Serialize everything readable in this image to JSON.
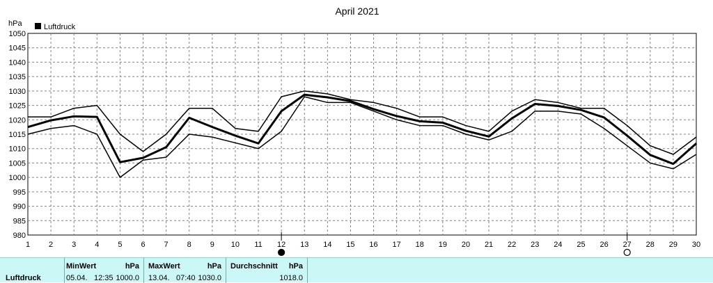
{
  "chart_data": {
    "type": "line",
    "title": "April 2021",
    "ylabel": "hPa",
    "x": [
      1,
      2,
      3,
      4,
      5,
      6,
      7,
      8,
      9,
      10,
      11,
      12,
      13,
      14,
      15,
      16,
      17,
      18,
      19,
      20,
      21,
      22,
      23,
      24,
      25,
      26,
      27,
      28,
      29,
      30
    ],
    "x_ticks": [
      "1",
      "2",
      "3",
      "4",
      "5",
      "6",
      "7",
      "8",
      "9",
      "10",
      "11",
      "12",
      "13",
      "14",
      "15",
      "16",
      "17",
      "18",
      "19",
      "20",
      "21",
      "22",
      "23",
      "24",
      "25",
      "26",
      "27",
      "28",
      "29",
      "30"
    ],
    "ylim": [
      980,
      1050
    ],
    "y_ticks": [
      "980",
      "985",
      "990",
      "995",
      "1000",
      "1005",
      "1010",
      "1015",
      "1020",
      "1025",
      "1030",
      "1035",
      "1040",
      "1045",
      "1050"
    ],
    "grid": true,
    "legend": {
      "position": "top-left",
      "label": "Luftdruck"
    },
    "series": [
      {
        "name": "Luftdruck",
        "role": "mean",
        "values": [
          1017.5,
          1019.8,
          1021.2,
          1021,
          1005.3,
          1006.8,
          1010.5,
          1020.7,
          1017.5,
          1014.5,
          1011.8,
          1023,
          1028.7,
          1027.8,
          1026.5,
          1023.7,
          1021.3,
          1019.5,
          1019,
          1016.2,
          1014.2,
          1020.5,
          1025.5,
          1024.8,
          1023.4,
          1020.8,
          1014.5,
          1007.8,
          1004.7,
          1011.8
        ]
      },
      {
        "role": "max",
        "values": [
          1021,
          1021,
          1024,
          1025,
          1015,
          1009,
          1015,
          1024,
          1024,
          1017,
          1016,
          1028,
          1030,
          1029,
          1027,
          1026,
          1024,
          1021,
          1021,
          1018,
          1016,
          1023,
          1027,
          1026,
          1024,
          1024,
          1018,
          1011,
          1008,
          1014
        ]
      },
      {
        "role": "min",
        "values": [
          1015,
          1017,
          1018,
          1015,
          1000,
          1006,
          1007,
          1015,
          1014,
          1012,
          1010,
          1016,
          1028,
          1026,
          1026,
          1023,
          1020,
          1018,
          1018,
          1015,
          1013,
          1016,
          1023,
          1023,
          1022,
          1017,
          1011,
          1005,
          1003,
          1008
        ]
      }
    ],
    "moon_phases": [
      {
        "x": 12,
        "icon": "new-moon-icon"
      },
      {
        "x": 27,
        "icon": "full-moon-icon"
      }
    ]
  },
  "footer": {
    "series_label": "Luftdruck",
    "min": {
      "header": "MinWert",
      "unit": "hPa",
      "date": "05.04.",
      "time": "12:35",
      "value": "1000.0"
    },
    "max": {
      "header": "MaxWert",
      "unit": "hPa",
      "date": "13.04.",
      "time": "07:40",
      "value": "1030.0"
    },
    "avg": {
      "header": "Durchschnitt",
      "unit": "hPa",
      "value": "1018.0"
    }
  }
}
